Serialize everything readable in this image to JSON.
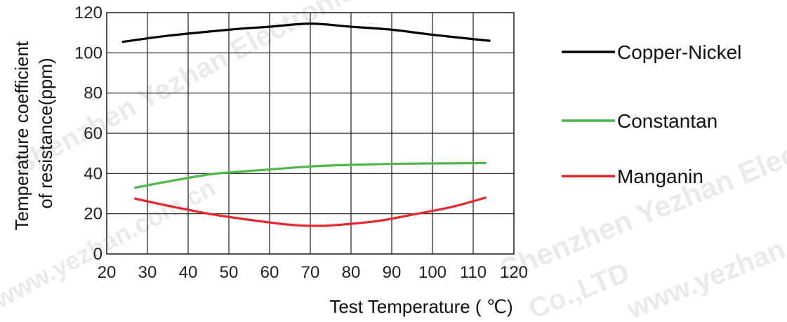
{
  "chart_data": {
    "type": "line",
    "title": "",
    "xlabel": "Test Temperature ( ℃)",
    "ylabel_lines": [
      "Temperature coefficient",
      "of resistance(ppm)"
    ],
    "xlim": [
      20,
      120
    ],
    "ylim": [
      0,
      120
    ],
    "x_ticks": [
      "20",
      "30",
      "40",
      "50",
      "60",
      "70",
      "80",
      "90",
      "100",
      "110",
      "120"
    ],
    "y_ticks": [
      "0",
      "20",
      "40",
      "60",
      "80",
      "100",
      "120"
    ],
    "grid": true,
    "legend_position": "right",
    "series": [
      {
        "name": "Copper-Nickel",
        "color": "#000000",
        "x": [
          24,
          35,
          50,
          60,
          70,
          80,
          90,
          100,
          114
        ],
        "y": [
          105.5,
          108.5,
          111.5,
          113,
          114.5,
          113,
          111.5,
          109,
          106
        ]
      },
      {
        "name": "Constantan",
        "color": "#4cb848",
        "x": [
          27,
          35,
          45,
          50,
          60,
          70,
          80,
          90,
          100,
          113
        ],
        "y": [
          33,
          36,
          39.5,
          40.5,
          42,
          43.5,
          44.3,
          44.8,
          45,
          45.2
        ]
      },
      {
        "name": "Manganin",
        "color": "#e8262b",
        "x": [
          27,
          35,
          45,
          55,
          65,
          73,
          80,
          87,
          95,
          105,
          113
        ],
        "y": [
          27.5,
          24,
          20,
          17,
          14.5,
          14,
          15,
          16.5,
          19.5,
          23.5,
          28
        ]
      }
    ]
  },
  "watermarks": [
    "Shenzhen Yezhan Electronics Co.,LTD",
    "www.yezhan.com.cn",
    "Shenzhen Yezhan Elec",
    "Co.,LTD",
    "www.yezhan.com.cn"
  ]
}
